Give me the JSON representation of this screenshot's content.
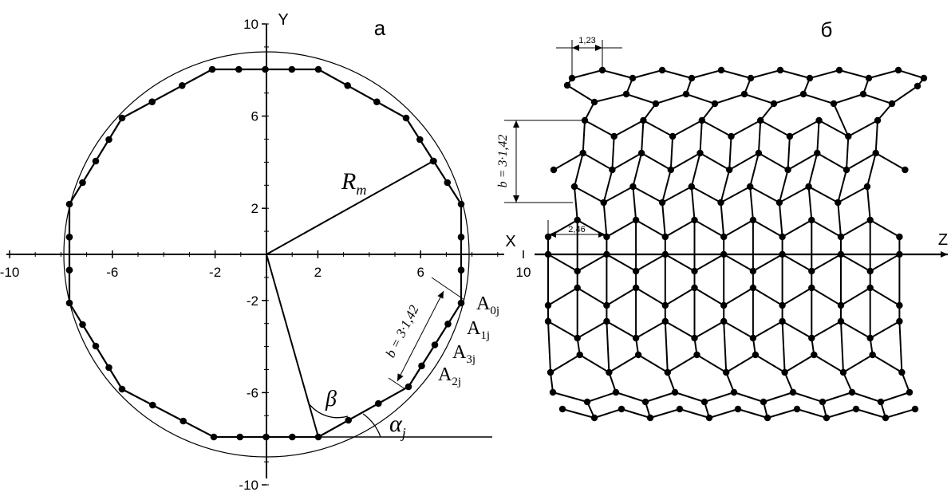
{
  "panel_a": {
    "label": "а",
    "x_axis_label": "X",
    "y_axis_label": "Y",
    "x_ticks": [
      "-10",
      "-6",
      "-2",
      "2",
      "6",
      "10"
    ],
    "y_ticks": [
      "10",
      "6",
      "2",
      "-2",
      "-6",
      "-10"
    ],
    "radius_label": "R",
    "radius_sub": "m",
    "dim_label": "b = 3·1,42",
    "points": [
      {
        "main": "A",
        "sub": "0j"
      },
      {
        "main": "A",
        "sub": "1j"
      },
      {
        "main": "A",
        "sub": "3j"
      },
      {
        "main": "A",
        "sub": "2j"
      }
    ],
    "beta_label": "β",
    "alpha_label": "α",
    "alpha_sub": "j"
  },
  "panel_b": {
    "label": "б",
    "z_axis_label": "Z",
    "dim_top": "1,23",
    "dim_mid": "2,46",
    "dim_side": "b = 3·1,42"
  },
  "colors": {
    "line": "#000000",
    "atom": "#000000",
    "background": "#ffffff"
  }
}
